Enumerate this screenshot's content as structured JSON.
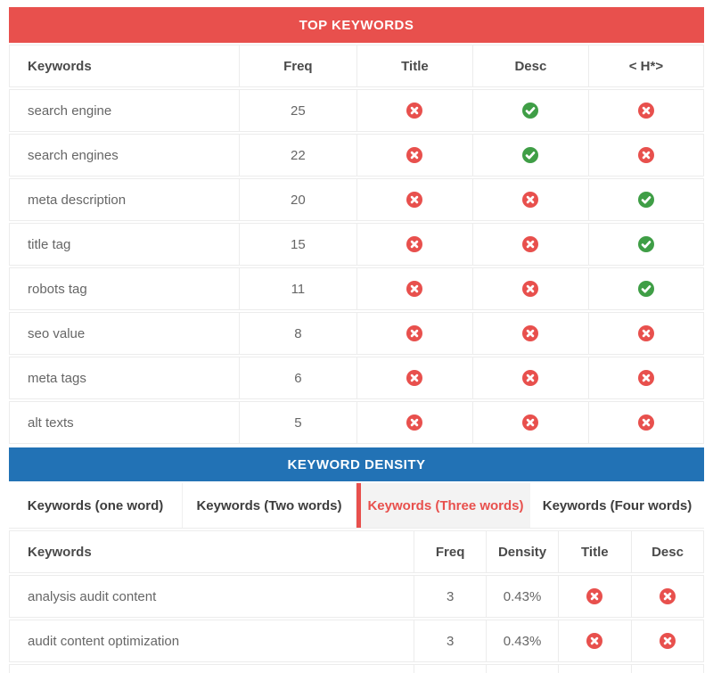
{
  "colors": {
    "red": "#e8504d",
    "blue": "#2272b5",
    "green": "#3f9e46",
    "active_tab_bg": "#f3f3f3",
    "border": "#ececec"
  },
  "top_keywords": {
    "title": "TOP KEYWORDS",
    "columns": [
      "Keywords",
      "Freq",
      "Title",
      "Desc",
      "< H*>"
    ],
    "column_widths": [
      "33%",
      "17%",
      "16.7%",
      "16.7%",
      "16.6%"
    ],
    "rows": [
      {
        "keyword": "search engine",
        "freq": "25",
        "title": "cross",
        "desc": "check",
        "h": "cross"
      },
      {
        "keyword": "search engines",
        "freq": "22",
        "title": "cross",
        "desc": "check",
        "h": "cross"
      },
      {
        "keyword": "meta description",
        "freq": "20",
        "title": "cross",
        "desc": "cross",
        "h": "check"
      },
      {
        "keyword": "title tag",
        "freq": "15",
        "title": "cross",
        "desc": "cross",
        "h": "check"
      },
      {
        "keyword": "robots tag",
        "freq": "11",
        "title": "cross",
        "desc": "cross",
        "h": "check"
      },
      {
        "keyword": "seo value",
        "freq": "8",
        "title": "cross",
        "desc": "cross",
        "h": "cross"
      },
      {
        "keyword": "meta tags",
        "freq": "6",
        "title": "cross",
        "desc": "cross",
        "h": "cross"
      },
      {
        "keyword": "alt texts",
        "freq": "5",
        "title": "cross",
        "desc": "cross",
        "h": "cross"
      }
    ]
  },
  "keyword_density": {
    "title": "KEYWORD DENSITY",
    "tabs": [
      {
        "label": "Keywords (one word)",
        "active": false
      },
      {
        "label": "Keywords (Two words)",
        "active": false
      },
      {
        "label": "Keywords (Three words)",
        "active": true
      },
      {
        "label": "Keywords (Four words)",
        "active": false
      }
    ],
    "columns": [
      "Keywords",
      "Freq",
      "Density",
      "Title",
      "Desc"
    ],
    "column_widths": [
      "58.2%",
      "10.5%",
      "10.3%",
      "10.6%",
      "10.4%"
    ],
    "rows": [
      {
        "keyword": "analysis audit content",
        "freq": "3",
        "density": "0.43%",
        "title": "cross",
        "desc": "cross"
      },
      {
        "keyword": "audit content optimization",
        "freq": "3",
        "density": "0.43%",
        "title": "cross",
        "desc": "cross"
      }
    ]
  }
}
